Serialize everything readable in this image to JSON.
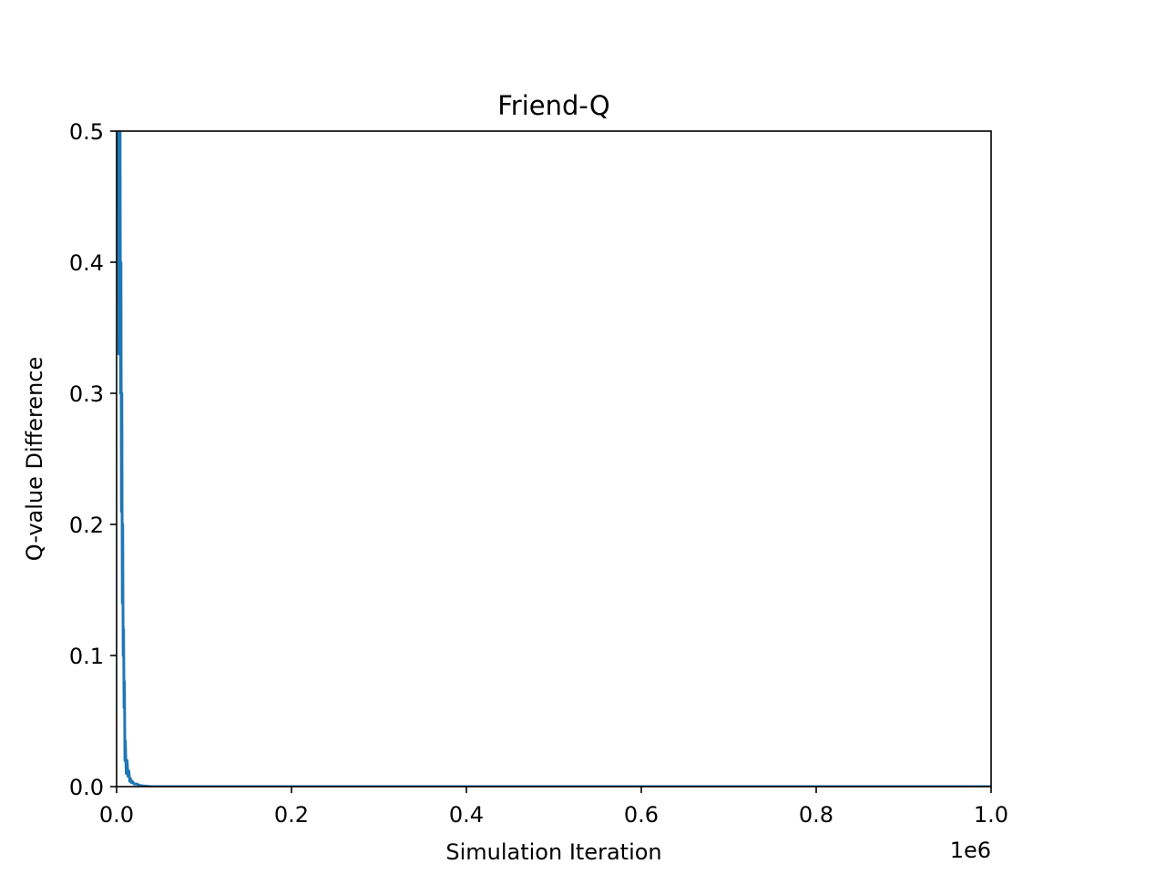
{
  "chart_data": {
    "type": "line",
    "title": "Friend-Q",
    "xlabel": "Simulation Iteration",
    "ylabel": "Q-value Difference",
    "x_offset_label": "1e6",
    "xlim": [
      0,
      1000000
    ],
    "ylim": [
      0,
      0.5
    ],
    "x_ticks": [
      0,
      200000,
      400000,
      600000,
      800000,
      1000000
    ],
    "x_tick_labels": [
      "0.0",
      "0.2",
      "0.4",
      "0.6",
      "0.8",
      "1.0"
    ],
    "y_ticks": [
      0,
      0.1,
      0.2,
      0.3,
      0.4,
      0.5
    ],
    "y_tick_labels": [
      "0.0",
      "0.1",
      "0.2",
      "0.3",
      "0.4",
      "0.5"
    ],
    "grid": false,
    "series": [
      {
        "color": "#1f77b4",
        "x": [
          0,
          500,
          1000,
          1500,
          2000,
          2500,
          3000,
          3500,
          4000,
          4500,
          5000,
          5500,
          6000,
          6500,
          7000,
          7500,
          8000,
          8500,
          9000,
          9500,
          10000,
          11000,
          12000,
          13000,
          14000,
          15000,
          16000,
          17000,
          18000,
          20000,
          23000,
          26000,
          30000,
          40000,
          60000,
          100000,
          200000,
          400000,
          600000,
          800000,
          1000000
        ],
        "y": [
          0.5,
          0.48,
          0.5,
          0.44,
          0.5,
          0.33,
          0.5,
          0.36,
          0.5,
          0.3,
          0.4,
          0.21,
          0.3,
          0.14,
          0.2,
          0.1,
          0.12,
          0.06,
          0.08,
          0.02,
          0.035,
          0.01,
          0.02,
          0.008,
          0.012,
          0.004,
          0.006,
          0.003,
          0.004,
          0.002,
          0.002,
          0.001,
          0.0005,
          0.0,
          0.0,
          0.0,
          0.0,
          0.0,
          0.0,
          0.0,
          0.0
        ]
      }
    ]
  }
}
